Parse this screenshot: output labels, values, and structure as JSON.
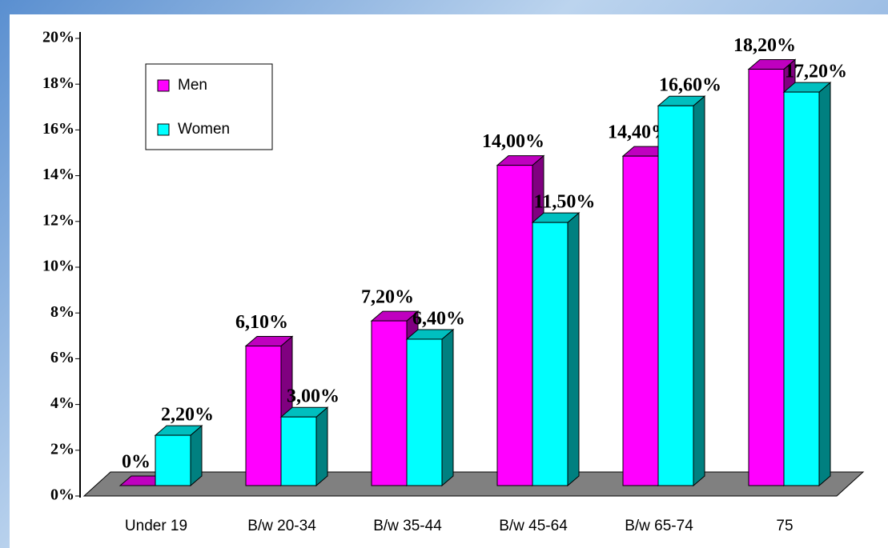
{
  "chart_data": {
    "type": "bar3d",
    "categories": [
      "Under 19",
      "B/w 20-34",
      "B/w 35-44",
      "B/w 45-64",
      "B/w 65-74",
      "75"
    ],
    "series": [
      {
        "name": "Men",
        "color": "#ff00ff",
        "values": [
          0,
          6.1,
          7.2,
          14.0,
          14.4,
          18.2
        ],
        "value_labels": [
          "0%",
          "6,10%",
          "7,20%",
          "14,00%",
          "14,40%",
          "18,20%"
        ]
      },
      {
        "name": "Women",
        "color": "#00ffff",
        "values": [
          2.2,
          3.0,
          6.4,
          11.5,
          16.6,
          17.2
        ],
        "value_labels": [
          "2,20%",
          "3,00%",
          "6,40%",
          "11,50%",
          "16,60%",
          "17,20%"
        ]
      }
    ],
    "ylim": [
      0,
      20
    ],
    "yticks": [
      {
        "value": 0,
        "label": "0%"
      },
      {
        "value": 2,
        "label": "2%"
      },
      {
        "value": 4,
        "label": "4%"
      },
      {
        "value": 6,
        "label": "6%"
      },
      {
        "value": 8,
        "label": "8%"
      },
      {
        "value": 10,
        "label": "10%"
      },
      {
        "value": 12,
        "label": "12%"
      },
      {
        "value": 14,
        "label": "14%"
      },
      {
        "value": 16,
        "label": "16%"
      },
      {
        "value": 18,
        "label": "18%"
      },
      {
        "value": 20,
        "label": "20%"
      }
    ],
    "legend": "upper left"
  }
}
